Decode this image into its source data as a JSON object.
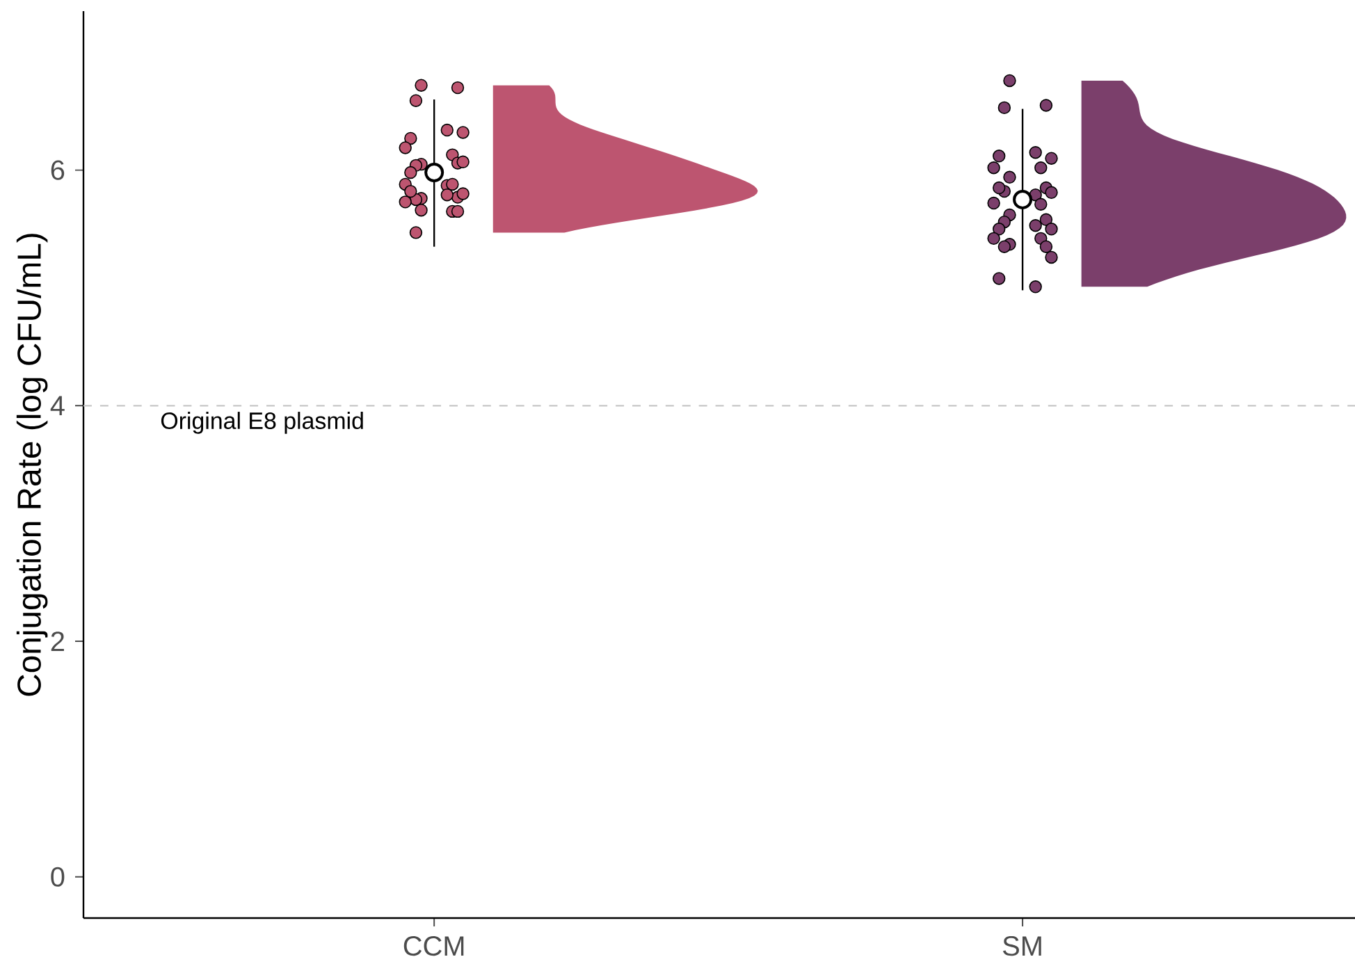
{
  "chart_data": {
    "type": "scatter",
    "ylabel": "Conjugation Rate (log CFU/mL)",
    "categories": [
      "CCM",
      "SM"
    ],
    "ylim": [
      -0.35,
      7.35
    ],
    "yticks": [
      0,
      2,
      4,
      6
    ],
    "marker": "circle",
    "ref_lines": [
      {
        "axis": "y",
        "value": 4,
        "label": "Original E8 plasmid",
        "color": "#c8c8c8",
        "line_style": "dashed"
      }
    ],
    "series": [
      {
        "color": "#bd5570",
        "x": [
          "CCM",
          "CCM",
          "CCM",
          "CCM",
          "CCM",
          "CCM",
          "CCM",
          "CCM",
          "CCM",
          "CCM",
          "CCM",
          "CCM",
          "CCM",
          "CCM",
          "CCM",
          "CCM",
          "CCM",
          "CCM",
          "CCM",
          "CCM",
          "CCM",
          "CCM",
          "CCM",
          "CCM",
          "CCM",
          "CCM",
          "CCM"
        ],
        "values": [
          6.72,
          6.7,
          6.59,
          6.32,
          6.27,
          6.34,
          6.19,
          6.13,
          6.05,
          6.06,
          6.04,
          6.07,
          5.98,
          5.87,
          5.88,
          5.88,
          5.76,
          5.77,
          5.75,
          5.8,
          5.82,
          5.79,
          5.73,
          5.65,
          5.66,
          5.65,
          5.47
        ]
      },
      {
        "color": "#7b3f6b",
        "x": [
          "SM",
          "SM",
          "SM",
          "SM",
          "SM",
          "SM",
          "SM",
          "SM",
          "SM",
          "SM",
          "SM",
          "SM",
          "SM",
          "SM",
          "SM",
          "SM",
          "SM",
          "SM",
          "SM",
          "SM",
          "SM",
          "SM",
          "SM",
          "SM",
          "SM",
          "SM",
          "SM",
          "SM",
          "SM",
          "SM"
        ],
        "values": [
          6.76,
          6.55,
          6.53,
          6.1,
          6.12,
          6.15,
          6.02,
          6.02,
          5.94,
          5.85,
          5.82,
          5.81,
          5.85,
          5.79,
          5.72,
          5.71,
          5.62,
          5.58,
          5.56,
          5.5,
          5.5,
          5.53,
          5.42,
          5.42,
          5.37,
          5.35,
          5.35,
          5.26,
          5.08,
          5.01
        ]
      },
      {
        "color": "#ffffff",
        "x": [
          "CCM",
          "SM"
        ],
        "values": [
          5.98,
          5.75
        ],
        "errors": [
          [
            5.35,
            6.6
          ],
          [
            4.98,
            6.52
          ]
        ]
      }
    ]
  }
}
